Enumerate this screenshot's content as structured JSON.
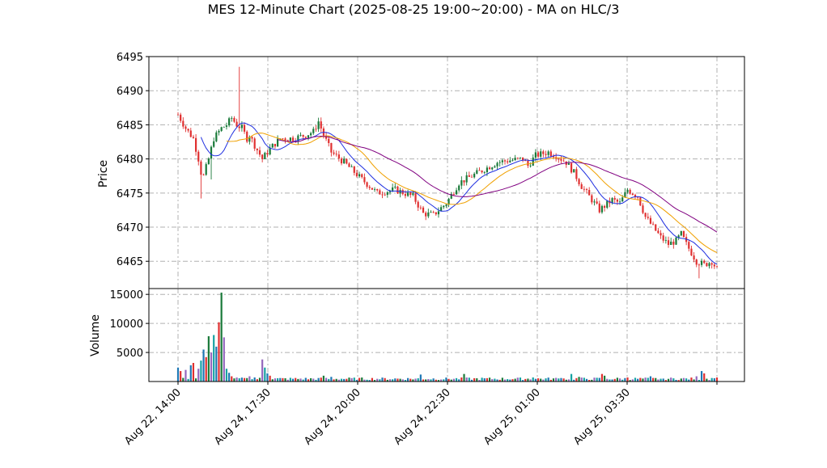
{
  "chart_data": {
    "type": "candlestick",
    "title": "MES 12-Minute Chart (2025-08-25 19:00~20:00) - MA on HLC/3",
    "price_panel": {
      "ylabel": "Price",
      "ylim": [
        6461,
        6495
      ],
      "yticks": [
        6465,
        6470,
        6475,
        6480,
        6485,
        6490,
        6495
      ],
      "grid": true
    },
    "volume_panel": {
      "ylabel": "Volume",
      "ylim": [
        0,
        16000
      ],
      "yticks": [
        5000,
        10000,
        15000
      ],
      "grid": true
    },
    "x_ticks": [
      "Aug 22, 14:00",
      "Aug 24, 17:30",
      "Aug 24, 20:00",
      "Aug 24, 22:30",
      "Aug 25, 01:00",
      "Aug 25, 03:30"
    ],
    "colors": {
      "up": "#1a7a3a",
      "down": "#e03030",
      "ma_fast": "#1f2fe0",
      "ma_mid": "#f0a000",
      "ma_slow": "#800080",
      "volume_palette": [
        "#1f77b4",
        "#e03030",
        "#1a7a3a",
        "#9467bd",
        "#17a2a2"
      ]
    },
    "price_anchors": [
      [
        0,
        6486.5
      ],
      [
        3,
        6484.5
      ],
      [
        6,
        6483
      ],
      [
        8,
        6480
      ],
      [
        9,
        6478
      ],
      [
        10,
        6477.5
      ],
      [
        12,
        6480
      ],
      [
        14,
        6483
      ],
      [
        17,
        6484.5
      ],
      [
        19,
        6485
      ],
      [
        21,
        6486
      ],
      [
        23,
        6485
      ],
      [
        25,
        6484.5
      ],
      [
        27,
        6483
      ],
      [
        28,
        6483.5
      ],
      [
        30,
        6482
      ],
      [
        33,
        6480
      ],
      [
        36,
        6481.5
      ],
      [
        40,
        6483
      ],
      [
        45,
        6483
      ],
      [
        50,
        6483.5
      ],
      [
        53,
        6484
      ],
      [
        55,
        6485.5
      ],
      [
        57,
        6483.5
      ],
      [
        60,
        6481
      ],
      [
        65,
        6479.5
      ],
      [
        72,
        6477
      ],
      [
        78,
        6475
      ],
      [
        85,
        6475.5
      ],
      [
        92,
        6474.5
      ],
      [
        96,
        6472
      ],
      [
        100,
        6471.8
      ],
      [
        105,
        6473.5
      ],
      [
        110,
        6476.5
      ],
      [
        115,
        6477.5
      ],
      [
        120,
        6478.5
      ],
      [
        125,
        6479.5
      ],
      [
        130,
        6479.8
      ],
      [
        135,
        6480
      ],
      [
        137,
        6479
      ],
      [
        140,
        6480.5
      ],
      [
        145,
        6481
      ],
      [
        148,
        6480.5
      ],
      [
        152,
        6479.5
      ],
      [
        155,
        6478
      ],
      [
        158,
        6476
      ],
      [
        162,
        6474
      ],
      [
        165,
        6472.5
      ],
      [
        170,
        6474
      ],
      [
        173,
        6473.5
      ],
      [
        176,
        6475.5
      ],
      [
        180,
        6474.5
      ],
      [
        183,
        6471.5
      ],
      [
        186,
        6470
      ],
      [
        189,
        6468.5
      ],
      [
        192,
        6467.5
      ],
      [
        195,
        6468
      ],
      [
        197,
        6469
      ],
      [
        199,
        6467.5
      ],
      [
        203,
        6465
      ],
      [
        206,
        6464.5
      ],
      [
        209,
        6465
      ],
      [
        211,
        6463.8
      ]
    ],
    "volume_spikes": [
      [
        0,
        2400
      ],
      [
        1,
        1800
      ],
      [
        3,
        2000
      ],
      [
        5,
        2800
      ],
      [
        6,
        3200
      ],
      [
        8,
        2200
      ],
      [
        9,
        3600
      ],
      [
        10,
        5500
      ],
      [
        11,
        4200
      ],
      [
        12,
        7800
      ],
      [
        13,
        5000
      ],
      [
        14,
        8000
      ],
      [
        15,
        6000
      ],
      [
        16,
        10200
      ],
      [
        17,
        15300
      ],
      [
        18,
        7600
      ],
      [
        19,
        2200
      ],
      [
        20,
        1500
      ],
      [
        21,
        900
      ],
      [
        26,
        600
      ],
      [
        28,
        900
      ],
      [
        30,
        700
      ],
      [
        33,
        3800
      ],
      [
        34,
        2400
      ],
      [
        35,
        1400
      ],
      [
        36,
        1000
      ],
      [
        57,
        1000
      ],
      [
        60,
        800
      ],
      [
        95,
        1200
      ],
      [
        112,
        1300
      ],
      [
        139,
        700
      ],
      [
        150,
        600
      ],
      [
        154,
        1300
      ],
      [
        157,
        800
      ],
      [
        166,
        1300
      ],
      [
        167,
        1000
      ],
      [
        176,
        700
      ],
      [
        185,
        900
      ],
      [
        190,
        500
      ],
      [
        203,
        900
      ],
      [
        205,
        1800
      ],
      [
        206,
        1400
      ],
      [
        209,
        600
      ],
      [
        211,
        700
      ]
    ],
    "n_bars": 212
  }
}
